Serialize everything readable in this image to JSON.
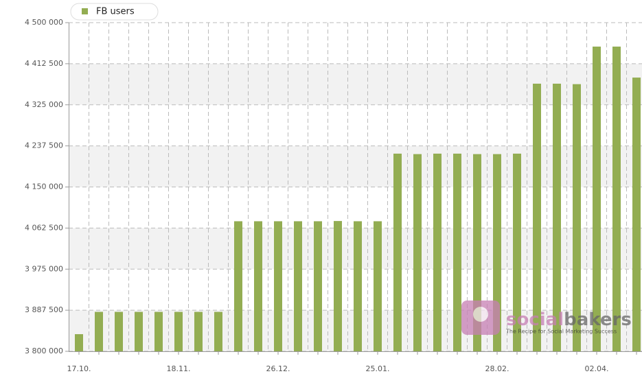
{
  "chart_data": {
    "type": "bar",
    "legend": "FB users",
    "color": "#93ad52",
    "categories": [
      "17.10.",
      null,
      null,
      null,
      null,
      "18.11.",
      null,
      null,
      null,
      null,
      "26.12.",
      null,
      null,
      null,
      null,
      "25.01.",
      null,
      null,
      null,
      null,
      null,
      "28.02.",
      null,
      null,
      null,
      null,
      "02.04.",
      null,
      null
    ],
    "values": [
      3836500,
      3884000,
      3884000,
      3884000,
      3884000,
      3884000,
      3884000,
      3884000,
      4077000,
      4077000,
      4077000,
      4077000,
      4077000,
      4077500,
      4077000,
      4077000,
      4221000,
      4220000,
      4221000,
      4221000,
      4220000,
      4220000,
      4221000,
      4370000,
      4370000,
      4369000,
      4449000,
      4449000,
      4383000
    ],
    "ylim": [
      3800000,
      4500000
    ],
    "yticks": [
      {
        "value": 3800000,
        "label": "3 800 000"
      },
      {
        "value": 3887500,
        "label": "3 887 500"
      },
      {
        "value": 3975000,
        "label": "3 975 000"
      },
      {
        "value": 4062500,
        "label": "4 062 500"
      },
      {
        "value": 4150000,
        "label": "4 150 000"
      },
      {
        "value": 4237500,
        "label": "4 237 500"
      },
      {
        "value": 4325000,
        "label": "4 325 000"
      },
      {
        "value": 4412500,
        "label": "4 412 500"
      },
      {
        "value": 4500000,
        "label": "4 500 000"
      }
    ],
    "grid": true,
    "watermark": {
      "brand_start": "social",
      "brand_end": "bakers",
      "tagline": "The Recipe for Social Marketing Success"
    }
  }
}
